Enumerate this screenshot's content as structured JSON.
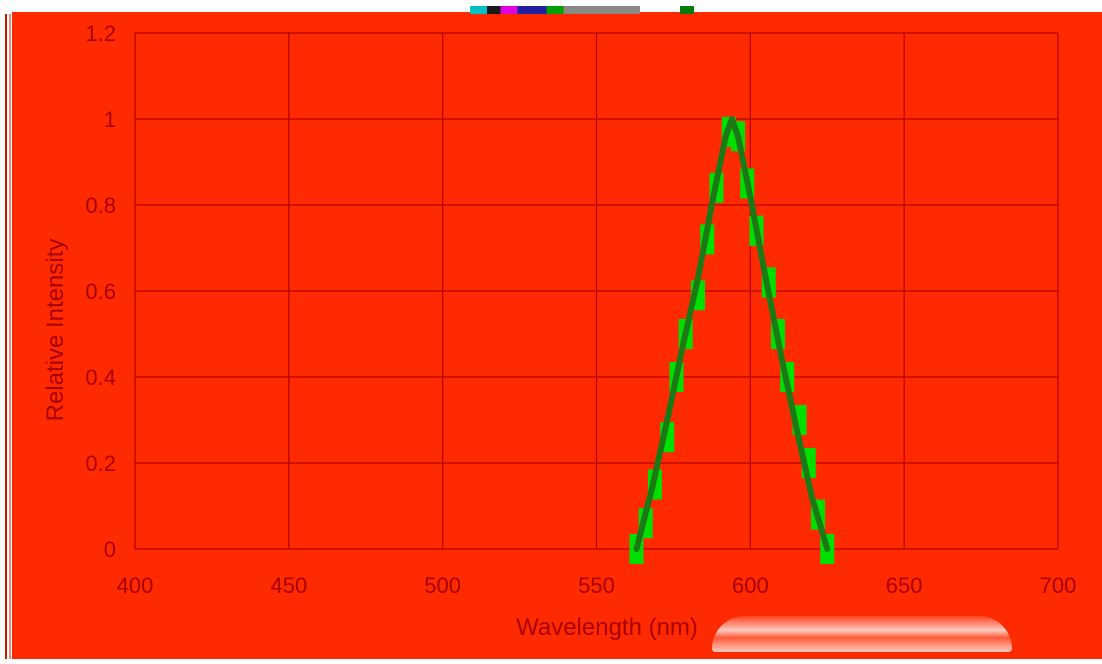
{
  "colors": {
    "plot_background": "#ff2a00",
    "grid": "#b30000",
    "tick_text": "#a80000",
    "marker": "#00e000",
    "curve": "#1b7a16"
  },
  "chart_data": {
    "type": "line",
    "title": "",
    "xlabel": "Wavelength (nm)",
    "ylabel": "Relative Intensity",
    "xlim": [
      400,
      700
    ],
    "ylim": [
      0,
      1.2
    ],
    "x_ticks": [
      400,
      450,
      500,
      550,
      600,
      650,
      700
    ],
    "y_ticks": [
      0,
      0.2,
      0.4,
      0.6,
      0.8,
      1,
      1.2
    ],
    "x_tick_labels": [
      "400",
      "450",
      "500",
      "550",
      "600",
      "650",
      "700"
    ],
    "y_tick_labels": [
      "0",
      "0.2",
      "0.4",
      "0.6",
      "0.8",
      "1",
      "1.2"
    ],
    "grid": true,
    "legend": "none",
    "series": [
      {
        "style": "square-markers",
        "x": [
          563,
          566,
          569,
          573,
          576,
          579,
          583,
          586,
          589,
          593,
          596,
          599,
          602,
          606,
          609,
          612,
          616,
          619,
          622,
          625
        ],
        "y": [
          0.0,
          0.06,
          0.15,
          0.26,
          0.4,
          0.5,
          0.59,
          0.72,
          0.84,
          0.97,
          0.96,
          0.85,
          0.74,
          0.62,
          0.5,
          0.4,
          0.3,
          0.2,
          0.08,
          0.0
        ]
      },
      {
        "style": "line",
        "x": [
          563,
          568,
          573,
          578,
          583,
          588,
          592,
          594,
          596,
          600,
          605,
          610,
          615,
          620,
          625
        ],
        "y": [
          0.0,
          0.14,
          0.3,
          0.47,
          0.63,
          0.82,
          0.96,
          1.0,
          0.96,
          0.82,
          0.63,
          0.45,
          0.28,
          0.12,
          0.0
        ]
      }
    ]
  }
}
